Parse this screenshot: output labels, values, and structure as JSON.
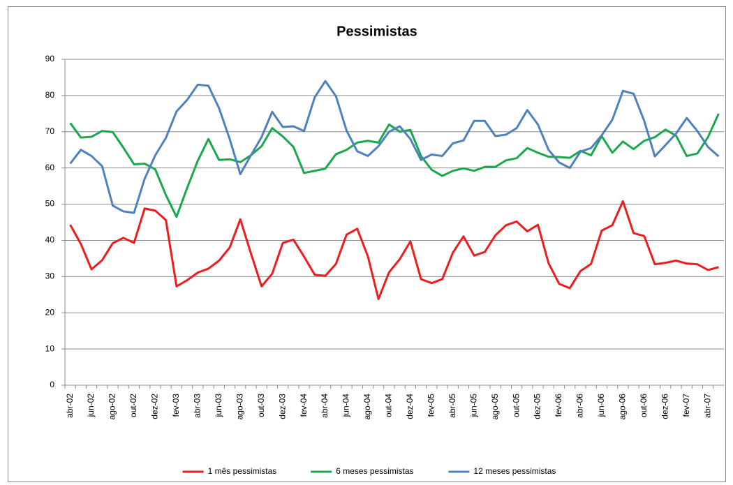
{
  "chart_data": {
    "type": "line",
    "title": "Pessimistas",
    "categories": [
      "abr-02",
      null,
      "jun-02",
      null,
      "ago-02",
      null,
      "out-02",
      null,
      "dez-02",
      null,
      "fev-03",
      null,
      "abr-03",
      null,
      "jun-03",
      null,
      "ago-03",
      null,
      "out-03",
      null,
      "dez-03",
      null,
      "fev-04",
      null,
      "abr-04",
      null,
      "jun-04",
      null,
      "ago-04",
      null,
      "out-04",
      null,
      "dez-04",
      null,
      "fev-05",
      null,
      "abr-05",
      null,
      "jun-05",
      null,
      "ago-05",
      null,
      "out-05",
      null,
      "dez-05",
      null,
      "fev-06",
      null,
      "abr-06",
      null,
      "jun-06",
      null,
      "ago-06",
      null,
      "out-06",
      null,
      "dez-06",
      null,
      "fev-07",
      null,
      "abr-07",
      null
    ],
    "series": [
      {
        "name": "1 mês pessimistas",
        "color": "#ee1c1c",
        "values": [
          44.3,
          39,
          32,
          34.5,
          39.2,
          40.7,
          39.3,
          48.8,
          48.2,
          45.6,
          27.3,
          29,
          31.1,
          32.2,
          34.4,
          38,
          45.8,
          36.4,
          27.3,
          30.8,
          39.3,
          40.2,
          35.5,
          30.5,
          30.2,
          33.5,
          41.6,
          43.2,
          35.6,
          23.8,
          31.2,
          34.8,
          39.7,
          29.3,
          28.2,
          29.3,
          36.6,
          41.1,
          35.8,
          36.8,
          41.4,
          44.2,
          45.2,
          42.5,
          44.3,
          33.7,
          28,
          26.8,
          31.5,
          33.5,
          42.7,
          44.2,
          50.8,
          42,
          41.2,
          33.4,
          33.8,
          34.4,
          33.6,
          33.4,
          31.8,
          32.6
        ]
      },
      {
        "name": "6 meses pessimistas",
        "color": "#19a84b",
        "values": [
          72.4,
          68.4,
          68.6,
          70.2,
          69.9,
          65.6,
          61,
          61.2,
          59.6,
          52.5,
          46.5,
          54.5,
          62,
          68,
          62.2,
          62.4,
          61.6,
          63.5,
          66,
          71,
          68.7,
          65.8,
          58.6,
          59.2,
          59.8,
          63.8,
          65,
          67,
          67.5,
          67,
          72,
          70,
          70.5,
          63.3,
          59.5,
          57.8,
          59.2,
          59.9,
          59.2,
          60.3,
          60.3,
          62.1,
          62.7,
          65.5,
          64.2,
          63.1,
          63,
          62.8,
          64.7,
          63.5,
          68.8,
          64.2,
          67.3,
          65.2,
          67.5,
          68.5,
          70.6,
          68.9,
          63.3,
          64,
          68.5,
          75
        ]
      },
      {
        "name": "12 meses pessimistas",
        "color": "#4f81bd",
        "values": [
          61.2,
          65,
          63.3,
          60.5,
          49.6,
          48,
          47.6,
          57,
          63.5,
          68.3,
          75.6,
          78.8,
          83,
          82.7,
          76.5,
          68,
          58.3,
          63.5,
          68.5,
          75.5,
          71.3,
          71.5,
          70.2,
          79.5,
          84,
          79.8,
          70.3,
          64.6,
          63.3,
          66,
          70,
          71.5,
          68,
          62.2,
          63.7,
          63.3,
          66.8,
          67.6,
          73,
          73,
          68.8,
          69.2,
          71,
          76,
          72,
          65,
          61.5,
          60,
          64.5,
          65.5,
          69,
          73.3,
          81.3,
          80.5,
          73,
          63.2,
          66.3,
          69.5,
          73.8,
          70.2,
          65.8,
          63.2
        ]
      }
    ],
    "ylim": [
      0,
      90
    ],
    "yticks": [
      0,
      10,
      20,
      30,
      40,
      50,
      60,
      70,
      80,
      90
    ],
    "grid": true,
    "legend": "bottom"
  }
}
